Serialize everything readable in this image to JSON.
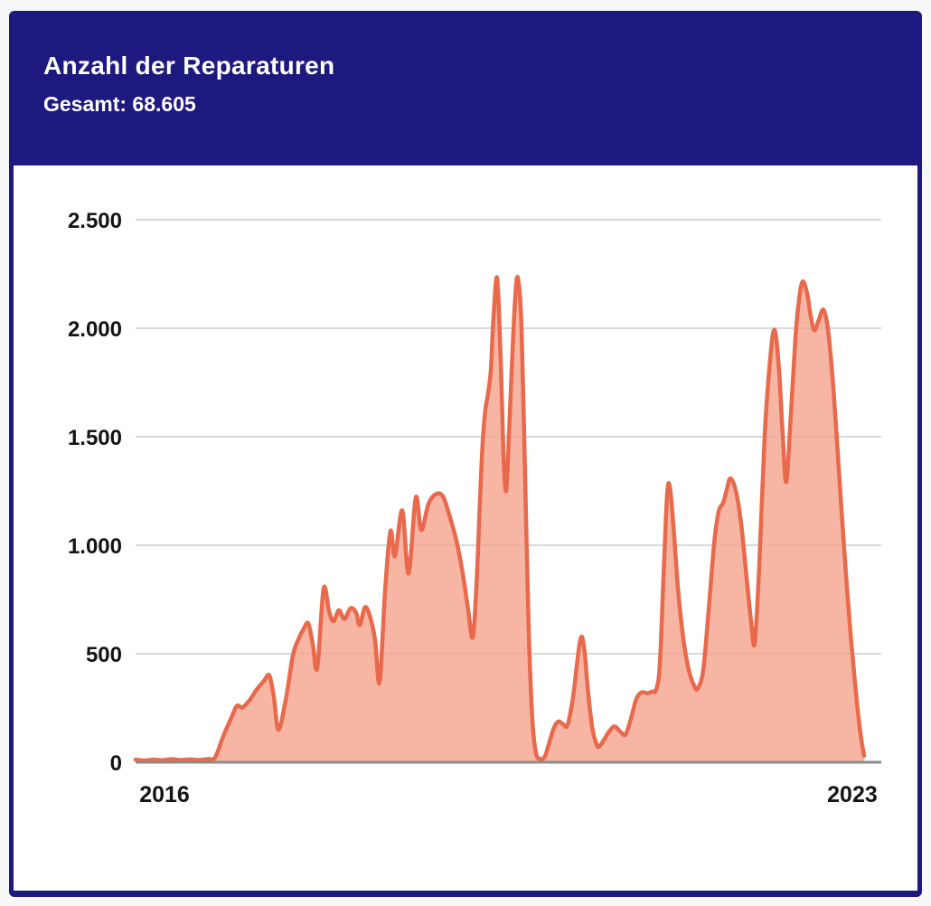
{
  "header": {
    "title": "Anzahl der Reparaturen",
    "subtitle": "Gesamt: 68.605"
  },
  "colors": {
    "page_bg": "#F8F8F8",
    "card_border": "#1E197E",
    "header_bg": "#1E197E",
    "header_text": "#FFFFFF",
    "grid": "#D9D9D9",
    "axis_line": "#8C8C8C",
    "tick_text": "#141414",
    "line": "#E8694C",
    "fill": "#F5A58F",
    "fill_opacity": 0.82
  },
  "chart_data": {
    "type": "area",
    "title": "Anzahl der Reparaturen",
    "total_label": "Gesamt: 68.605",
    "total_value": 68605,
    "xlabel": "",
    "ylabel": "",
    "grid": true,
    "legend": "none",
    "ylim": [
      0,
      2500
    ],
    "y_ticks": [
      {
        "label": "0",
        "value": 0
      },
      {
        "label": "500",
        "value": 500
      },
      {
        "label": "1.000",
        "value": 1000
      },
      {
        "label": "1.500",
        "value": 1500
      },
      {
        "label": "2.000",
        "value": 2000
      },
      {
        "label": "2.500",
        "value": 2500
      }
    ],
    "x_ticks": [
      {
        "label": "2016",
        "t": 0.0397
      },
      {
        "label": "2023",
        "t": 0.9826
      }
    ],
    "series": [
      {
        "name": "Reparaturen",
        "points": [
          [
            0.0,
            12
          ],
          [
            0.0124,
            8
          ],
          [
            0.0248,
            12
          ],
          [
            0.0372,
            9
          ],
          [
            0.0496,
            14
          ],
          [
            0.062,
            10
          ],
          [
            0.0743,
            13
          ],
          [
            0.0867,
            10
          ],
          [
            0.0991,
            15
          ],
          [
            0.109,
            22
          ],
          [
            0.1202,
            120
          ],
          [
            0.1313,
            205
          ],
          [
            0.1388,
            260
          ],
          [
            0.1462,
            252
          ],
          [
            0.1561,
            285
          ],
          [
            0.166,
            335
          ],
          [
            0.176,
            375
          ],
          [
            0.1834,
            400
          ],
          [
            0.1896,
            300
          ],
          [
            0.1958,
            150
          ],
          [
            0.2057,
            285
          ],
          [
            0.2156,
            490
          ],
          [
            0.2231,
            565
          ],
          [
            0.2305,
            615
          ],
          [
            0.2367,
            640
          ],
          [
            0.2429,
            545
          ],
          [
            0.2491,
            435
          ],
          [
            0.2578,
            800
          ],
          [
            0.2652,
            695
          ],
          [
            0.2714,
            650
          ],
          [
            0.2788,
            700
          ],
          [
            0.2863,
            660
          ],
          [
            0.2949,
            710
          ],
          [
            0.3024,
            688
          ],
          [
            0.3073,
            632
          ],
          [
            0.3148,
            715
          ],
          [
            0.3222,
            662
          ],
          [
            0.3284,
            560
          ],
          [
            0.3346,
            368
          ],
          [
            0.342,
            790
          ],
          [
            0.3494,
            1065
          ],
          [
            0.3556,
            950
          ],
          [
            0.3656,
            1160
          ],
          [
            0.3742,
            870
          ],
          [
            0.3841,
            1220
          ],
          [
            0.3916,
            1070
          ],
          [
            0.4015,
            1190
          ],
          [
            0.4114,
            1235
          ],
          [
            0.4213,
            1225
          ],
          [
            0.43,
            1140
          ],
          [
            0.4399,
            1020
          ],
          [
            0.4486,
            868
          ],
          [
            0.456,
            700
          ],
          [
            0.4622,
            575
          ],
          [
            0.4672,
            805
          ],
          [
            0.4721,
            1205
          ],
          [
            0.4759,
            1480
          ],
          [
            0.4796,
            1625
          ],
          [
            0.4833,
            1700
          ],
          [
            0.487,
            1805
          ],
          [
            0.4907,
            2050
          ],
          [
            0.4957,
            2230
          ],
          [
            0.5006,
            1850
          ],
          [
            0.5043,
            1420
          ],
          [
            0.5081,
            1250
          ],
          [
            0.5118,
            1500
          ],
          [
            0.5155,
            1800
          ],
          [
            0.5204,
            2140
          ],
          [
            0.5242,
            2230
          ],
          [
            0.5291,
            2000
          ],
          [
            0.5341,
            1300
          ],
          [
            0.539,
            600
          ],
          [
            0.544,
            195
          ],
          [
            0.5489,
            42
          ],
          [
            0.5551,
            15
          ],
          [
            0.5613,
            28
          ],
          [
            0.5675,
            95
          ],
          [
            0.5737,
            160
          ],
          [
            0.5799,
            188
          ],
          [
            0.5861,
            175
          ],
          [
            0.5923,
            172
          ],
          [
            0.5997,
            300
          ],
          [
            0.6047,
            440
          ],
          [
            0.6084,
            540
          ],
          [
            0.6121,
            578
          ],
          [
            0.6158,
            500
          ],
          [
            0.6196,
            352
          ],
          [
            0.6233,
            230
          ],
          [
            0.627,
            140
          ],
          [
            0.6307,
            95
          ],
          [
            0.6344,
            70
          ],
          [
            0.6419,
            102
          ],
          [
            0.6493,
            142
          ],
          [
            0.6568,
            165
          ],
          [
            0.6642,
            142
          ],
          [
            0.6716,
            128
          ],
          [
            0.679,
            200
          ],
          [
            0.6865,
            292
          ],
          [
            0.6939,
            322
          ],
          [
            0.7014,
            318
          ],
          [
            0.7088,
            326
          ],
          [
            0.7138,
            335
          ],
          [
            0.7187,
            450
          ],
          [
            0.7237,
            850
          ],
          [
            0.7286,
            1230
          ],
          [
            0.7324,
            1270
          ],
          [
            0.7373,
            1090
          ],
          [
            0.7435,
            805
          ],
          [
            0.751,
            565
          ],
          [
            0.7584,
            425
          ],
          [
            0.7658,
            352
          ],
          [
            0.7708,
            340
          ],
          [
            0.7782,
            425
          ],
          [
            0.7857,
            705
          ],
          [
            0.7931,
            1005
          ],
          [
            0.7993,
            1155
          ],
          [
            0.8055,
            1195
          ],
          [
            0.8104,
            1255
          ],
          [
            0.8154,
            1308
          ],
          [
            0.8228,
            1252
          ],
          [
            0.8302,
            1098
          ],
          [
            0.8377,
            848
          ],
          [
            0.8439,
            648
          ],
          [
            0.8488,
            548
          ],
          [
            0.855,
            905
          ],
          [
            0.8625,
            1505
          ],
          [
            0.8699,
            1855
          ],
          [
            0.8761,
            1992
          ],
          [
            0.8823,
            1800
          ],
          [
            0.8872,
            1505
          ],
          [
            0.8922,
            1292
          ],
          [
            0.8984,
            1605
          ],
          [
            0.9046,
            1955
          ],
          [
            0.9095,
            2130
          ],
          [
            0.9145,
            2215
          ],
          [
            0.9207,
            2160
          ],
          [
            0.9256,
            2055
          ],
          [
            0.9306,
            1990
          ],
          [
            0.9368,
            2040
          ],
          [
            0.943,
            2085
          ],
          [
            0.9492,
            1995
          ],
          [
            0.9554,
            1775
          ],
          [
            0.9616,
            1480
          ],
          [
            0.9678,
            1160
          ],
          [
            0.974,
            860
          ],
          [
            0.9802,
            590
          ],
          [
            0.9864,
            362
          ],
          [
            0.9913,
            200
          ],
          [
            0.995,
            102
          ],
          [
            0.9988,
            30
          ]
        ]
      }
    ]
  }
}
